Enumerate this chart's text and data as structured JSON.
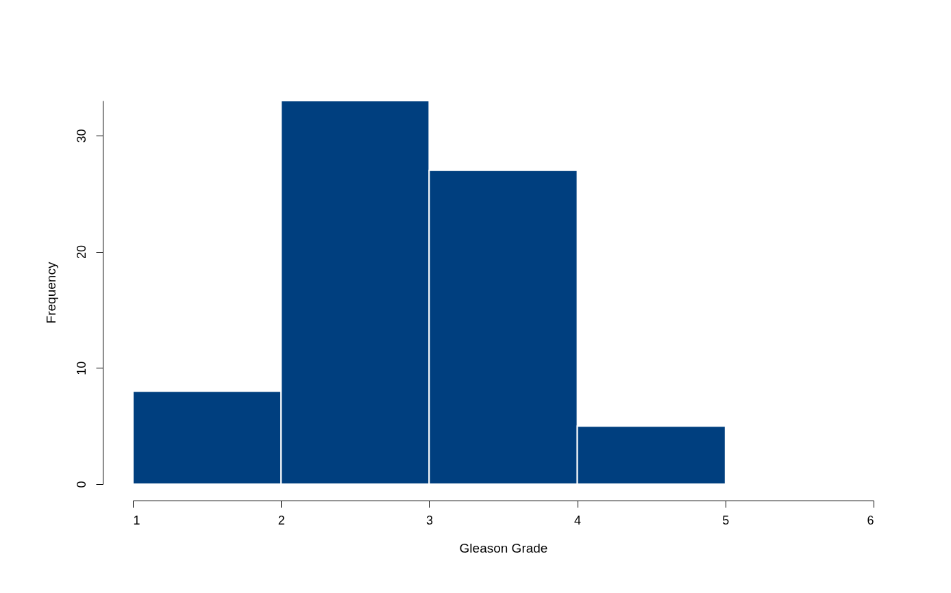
{
  "chart_data": {
    "type": "histogram",
    "xlabel": "Gleason Grade",
    "ylabel": "Frequency",
    "bins": [
      1,
      2,
      3,
      4,
      5
    ],
    "values": [
      8,
      33,
      27,
      5
    ],
    "color": "#003f7f",
    "xlim": [
      1,
      6
    ],
    "xticks": [
      1,
      2,
      3,
      4,
      5,
      6
    ],
    "ylim": [
      0,
      33
    ],
    "yticks": [
      0,
      10,
      20,
      30
    ]
  }
}
